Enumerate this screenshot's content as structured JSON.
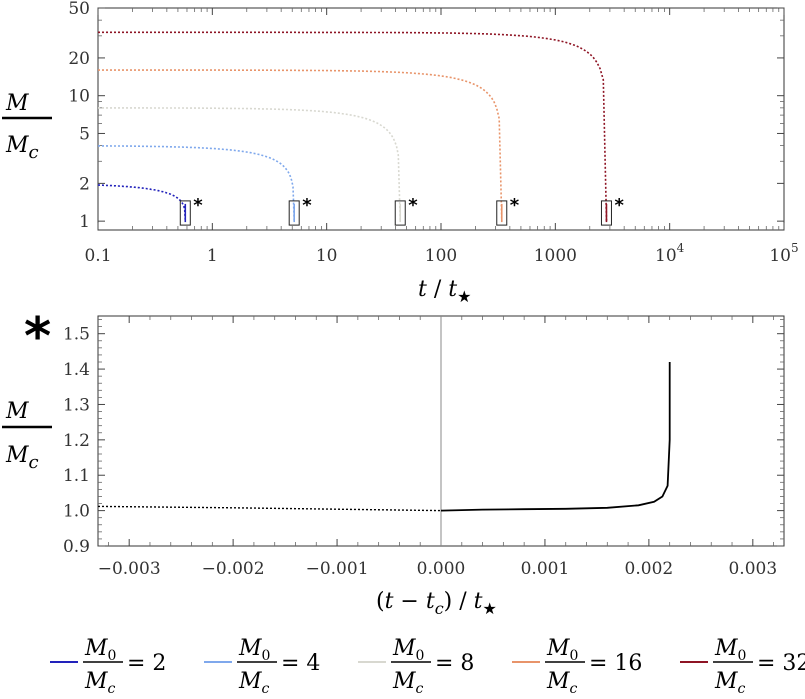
{
  "chart_data": [
    {
      "type": "line",
      "y_scale": "log",
      "x_scale": "log",
      "xlim": [
        0.1,
        100000
      ],
      "ylim": [
        0.85,
        50
      ],
      "xlabel": "t / t*",
      "ylabel": "M / Mc",
      "x_ticks": [
        "0.1",
        "1",
        "10",
        "100",
        "1000",
        "10",
        "10",
        "10"
      ],
      "x_tick_exponents": [
        "",
        "",
        "",
        "",
        "",
        "",
        "4",
        "5"
      ],
      "y_ticks": [
        "1",
        "2",
        "5",
        "10",
        "20",
        "50"
      ],
      "box_marker": "*",
      "series": [
        {
          "name": "M0/Mc = 2",
          "color": "#2222bb",
          "M0": 2,
          "x": [
            0.1,
            0.2,
            0.3,
            0.4,
            0.5,
            0.55,
            0.58
          ],
          "y": [
            2.0,
            1.9,
            1.75,
            1.55,
            1.3,
            1.12,
            1.02
          ],
          "collapse_t": 0.58
        },
        {
          "name": "M0/Mc = 4",
          "color": "#7fa8ec",
          "M0": 4,
          "x": [
            0.1,
            1,
            2,
            3,
            4,
            4.8,
            5.2
          ],
          "y": [
            4.0,
            3.7,
            3.2,
            2.6,
            1.9,
            1.3,
            1.02
          ],
          "collapse_t": 5.2
        },
        {
          "name": "M0/Mc = 8",
          "color": "#d8d8d0",
          "M0": 8,
          "x": [
            0.1,
            1,
            10,
            20,
            30,
            40,
            44
          ],
          "y": [
            8.0,
            7.9,
            7.4,
            6.2,
            4.5,
            2.2,
            1.02
          ],
          "collapse_t": 44
        },
        {
          "name": "M0/Mc = 16",
          "color": "#e8946a",
          "M0": 16,
          "x": [
            0.1,
            10,
            100,
            200,
            280,
            320,
            340
          ],
          "y": [
            16.0,
            15.9,
            15.2,
            13.0,
            9.0,
            4.0,
            1.02
          ],
          "collapse_t": 340
        },
        {
          "name": "M0/Mc = 32",
          "color": "#8e1424",
          "M0": 32,
          "x": [
            0.1,
            100,
            1000,
            2000,
            2500,
            2700,
            2800
          ],
          "y": [
            32.0,
            31.8,
            30.5,
            25.0,
            14.0,
            5.0,
            1.02
          ],
          "collapse_t": 2800
        }
      ]
    },
    {
      "type": "line",
      "xlim": [
        -0.0033,
        0.0033
      ],
      "ylim": [
        0.9,
        1.55
      ],
      "xlabel": "(t − tc) / t*",
      "ylabel": "M / Mc",
      "x_ticks": [
        "−0.003",
        "−0.002",
        "−0.001",
        "0.000",
        "0.001",
        "0.002",
        "0.003"
      ],
      "y_ticks": [
        "0.9",
        "1.0",
        "1.1",
        "1.2",
        "1.3",
        "1.4",
        "1.5"
      ],
      "marker": "*",
      "series": [
        {
          "style": "dotted",
          "color": "#000000",
          "x": [
            -0.0033,
            -0.002,
            -0.001,
            0.0
          ],
          "y": [
            1.012,
            1.008,
            1.004,
            1.0
          ]
        },
        {
          "style": "solid",
          "color": "#000000",
          "x": [
            0.0,
            0.0004,
            0.0008,
            0.0012,
            0.0016,
            0.0019,
            0.00205,
            0.00213,
            0.00218,
            0.0022,
            0.0022
          ],
          "y": [
            1.0,
            1.003,
            1.004,
            1.005,
            1.008,
            1.015,
            1.025,
            1.04,
            1.07,
            1.2,
            1.42
          ]
        }
      ]
    }
  ],
  "legend": {
    "items": [
      {
        "num": "M",
        "num_sub": "0",
        "den": "M",
        "den_sub": "c",
        "value": "= 2",
        "color": "#2222bb"
      },
      {
        "num": "M",
        "num_sub": "0",
        "den": "M",
        "den_sub": "c",
        "value": "= 4",
        "color": "#7fa8ec"
      },
      {
        "num": "M",
        "num_sub": "0",
        "den": "M",
        "den_sub": "c",
        "value": "= 8",
        "color": "#d8d8d0"
      },
      {
        "num": "M",
        "num_sub": "0",
        "den": "M",
        "den_sub": "c",
        "value": "= 16",
        "color": "#e8946a"
      },
      {
        "num": "M",
        "num_sub": "0",
        "den": "M",
        "den_sub": "c",
        "value": "= 32",
        "color": "#8e1424"
      }
    ]
  }
}
